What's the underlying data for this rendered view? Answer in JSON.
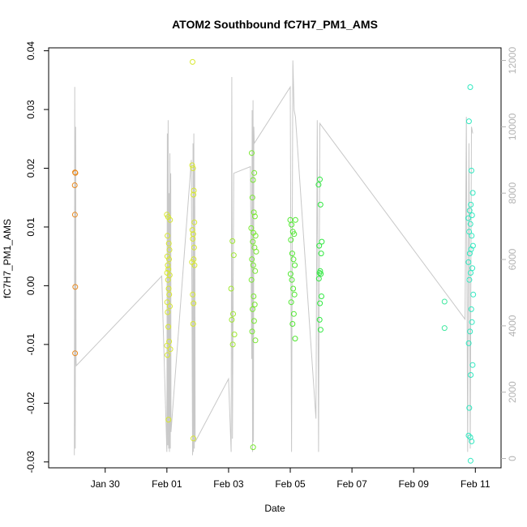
{
  "chart_data": {
    "type": "scatter",
    "title": "ATOM2 Southbound fC7H7_PM1_AMS",
    "xlabel": "Date",
    "ylabel": "fC7H7_PM1_AMS",
    "x_type": "date",
    "xlim": [
      "2017-01-28T04:00",
      "2017-02-11T20:00"
    ],
    "ylim": [
      -0.031,
      0.0405
    ],
    "y_ticks": [
      -0.03,
      -0.02,
      -0.01,
      0.0,
      0.01,
      0.02,
      0.03,
      0.04
    ],
    "y_tick_labels": [
      "-0.03",
      "-0.02",
      "-0.01",
      "0.00",
      "0.01",
      "0.02",
      "0.03",
      "0.04"
    ],
    "x_ticks": [
      "2017-01-30T00:00",
      "2017-02-01T00:00",
      "2017-02-03T00:00",
      "2017-02-05T00:00",
      "2017-02-07T00:00",
      "2017-02-09T00:00",
      "2017-02-11T00:00"
    ],
    "x_tick_labels": [
      "Jan 30",
      "Feb 01",
      "Feb 03",
      "Feb 05",
      "Feb 07",
      "Feb 09",
      "Feb 11"
    ],
    "y2lim": [
      -280,
      12380
    ],
    "y2_ticks": [
      0,
      2000,
      4000,
      6000,
      8000,
      10000,
      12000
    ],
    "y2_tick_labels": [
      "0",
      "2000",
      "4000",
      "6000",
      "8000",
      "10000",
      "12000"
    ],
    "grid": false,
    "legend": "none",
    "point_color_scale": [
      "#ff8c00",
      "#e6f000",
      "#8cf000",
      "#00f000",
      "#00f0c8"
    ],
    "line_color": "#c8c8c8",
    "groups": [
      {
        "color": "#e88a20",
        "points": [
          [
            "2017-01-29T00:30",
            0.0193
          ],
          [
            "2017-01-29T00:50",
            0.0192
          ],
          [
            "2017-01-29T00:20",
            0.0171
          ],
          [
            "2017-01-29T00:25",
            0.0121
          ],
          [
            "2017-01-29T00:40",
            -0.0002
          ],
          [
            "2017-01-29T00:35",
            -0.0115
          ]
        ]
      },
      {
        "color": "#d8e830",
        "points": [
          [
            "2017-02-01T00:00",
            0.0121
          ],
          [
            "2017-02-01T01:00",
            0.0117
          ],
          [
            "2017-02-01T02:30",
            0.0112
          ],
          [
            "2017-02-01T00:30",
            0.0085
          ],
          [
            "2017-02-01T01:30",
            0.0072
          ],
          [
            "2017-02-01T02:00",
            0.0061
          ],
          [
            "2017-02-01T00:20",
            0.005
          ],
          [
            "2017-02-01T01:40",
            0.0045
          ],
          [
            "2017-02-01T00:40",
            0.0035
          ],
          [
            "2017-02-01T01:10",
            0.0028
          ],
          [
            "2017-02-01T00:10",
            0.0022
          ],
          [
            "2017-02-01T02:10",
            0.0018
          ],
          [
            "2017-02-01T00:50",
            0.001
          ],
          [
            "2017-02-01T01:20",
            -0.0005
          ],
          [
            "2017-02-01T01:50",
            -0.0015
          ],
          [
            "2017-02-01T00:15",
            -0.0028
          ],
          [
            "2017-02-01T02:20",
            -0.0035
          ],
          [
            "2017-02-01T00:35",
            -0.0045
          ],
          [
            "2017-02-01T01:05",
            -0.007
          ],
          [
            "2017-02-01T01:45",
            -0.0095
          ],
          [
            "2017-02-01T00:05",
            -0.0102
          ],
          [
            "2017-02-01T02:40",
            -0.0108
          ],
          [
            "2017-02-01T00:25",
            -0.0118
          ],
          [
            "2017-02-01T01:15",
            -0.0228
          ]
        ]
      },
      {
        "color": "#d8e830",
        "points": [
          [
            "2017-02-01T20:00",
            0.0381
          ],
          [
            "2017-02-01T19:40",
            0.0205
          ],
          [
            "2017-02-01T20:20",
            0.02
          ],
          [
            "2017-02-01T21:00",
            0.0162
          ],
          [
            "2017-02-01T20:40",
            0.0155
          ],
          [
            "2017-02-01T21:20",
            0.0108
          ],
          [
            "2017-02-01T19:50",
            0.0095
          ],
          [
            "2017-02-01T20:30",
            0.0088
          ],
          [
            "2017-02-01T20:10",
            0.008
          ],
          [
            "2017-02-01T21:10",
            0.0065
          ],
          [
            "2017-02-01T20:50",
            0.0045
          ],
          [
            "2017-02-01T19:30",
            0.004
          ],
          [
            "2017-02-01T21:30",
            0.0035
          ],
          [
            "2017-02-01T20:05",
            -0.0015
          ],
          [
            "2017-02-01T20:45",
            -0.003
          ],
          [
            "2017-02-01T20:25",
            -0.0065
          ],
          [
            "2017-02-01T20:35",
            -0.026
          ]
        ]
      },
      {
        "color": "#a0e830",
        "points": [
          [
            "2017-02-03T03:00",
            0.0076
          ],
          [
            "2017-02-03T04:00",
            0.0052
          ],
          [
            "2017-02-03T02:00",
            -0.0005
          ],
          [
            "2017-02-03T03:30",
            -0.0048
          ],
          [
            "2017-02-03T02:30",
            -0.0058
          ],
          [
            "2017-02-03T04:30",
            -0.0083
          ],
          [
            "2017-02-03T03:15",
            -0.01
          ]
        ]
      },
      {
        "color": "#78e830",
        "points": [
          [
            "2017-02-03T18:00",
            0.0226
          ],
          [
            "2017-02-03T20:00",
            0.0192
          ],
          [
            "2017-02-03T19:00",
            0.018
          ],
          [
            "2017-02-03T18:30",
            0.015
          ],
          [
            "2017-02-03T19:40",
            0.0125
          ],
          [
            "2017-02-03T20:30",
            0.0118
          ],
          [
            "2017-02-03T17:40",
            0.0098
          ],
          [
            "2017-02-03T19:20",
            0.009
          ],
          [
            "2017-02-03T21:00",
            0.0085
          ],
          [
            "2017-02-03T18:50",
            0.0075
          ],
          [
            "2017-02-03T20:10",
            0.0065
          ],
          [
            "2017-02-03T21:30",
            0.0058
          ],
          [
            "2017-02-03T18:10",
            0.0045
          ],
          [
            "2017-02-03T19:10",
            0.0035
          ],
          [
            "2017-02-03T20:40",
            0.0025
          ],
          [
            "2017-02-03T17:50",
            0.001
          ],
          [
            "2017-02-03T19:30",
            -0.0018
          ],
          [
            "2017-02-03T20:20",
            -0.0032
          ],
          [
            "2017-02-03T18:40",
            -0.004
          ],
          [
            "2017-02-03T19:50",
            -0.006
          ],
          [
            "2017-02-03T18:20",
            -0.0078
          ],
          [
            "2017-02-03T20:50",
            -0.0093
          ],
          [
            "2017-02-03T19:05",
            -0.0275
          ]
        ]
      },
      {
        "color": "#50e830",
        "points": [
          [
            "2017-02-05T00:00",
            0.0112
          ],
          [
            "2017-02-05T04:00",
            0.0112
          ],
          [
            "2017-02-05T01:00",
            0.0104
          ],
          [
            "2017-02-05T02:00",
            0.0092
          ],
          [
            "2017-02-05T03:00",
            0.0088
          ],
          [
            "2017-02-05T00:30",
            0.0078
          ],
          [
            "2017-02-05T01:30",
            0.0055
          ],
          [
            "2017-02-05T02:30",
            0.0045
          ],
          [
            "2017-02-05T03:30",
            0.0035
          ],
          [
            "2017-02-05T00:15",
            0.002
          ],
          [
            "2017-02-05T01:15",
            0.001
          ],
          [
            "2017-02-05T02:15",
            -0.0005
          ],
          [
            "2017-02-05T03:15",
            -0.0015
          ],
          [
            "2017-02-05T00:45",
            -0.0028
          ],
          [
            "2017-02-05T02:45",
            -0.0048
          ],
          [
            "2017-02-05T01:45",
            -0.0065
          ],
          [
            "2017-02-05T03:45",
            -0.009
          ]
        ]
      },
      {
        "color": "#30e840",
        "points": [
          [
            "2017-02-05T23:00",
            0.0181
          ],
          [
            "2017-02-05T22:00",
            0.0172
          ],
          [
            "2017-02-05T23:30",
            0.0138
          ],
          [
            "2017-02-06T00:30",
            0.0075
          ],
          [
            "2017-02-05T22:30",
            0.0068
          ],
          [
            "2017-02-06T00:00",
            0.0055
          ],
          [
            "2017-02-05T23:15",
            0.0025
          ],
          [
            "2017-02-05T22:45",
            0.0022
          ],
          [
            "2017-02-05T23:45",
            0.002
          ],
          [
            "2017-02-05T22:15",
            0.0012
          ],
          [
            "2017-02-06T00:15",
            -0.0018
          ],
          [
            "2017-02-05T23:05",
            -0.003
          ],
          [
            "2017-02-05T22:50",
            -0.0058
          ],
          [
            "2017-02-05T23:35",
            -0.0075
          ]
        ]
      },
      {
        "color": "#40e8a0",
        "points": [
          [
            "2017-02-10T00:00",
            -0.0027
          ],
          [
            "2017-02-10T00:00",
            -0.0072
          ]
        ]
      },
      {
        "color": "#30e8c0",
        "points": [
          [
            "2017-02-10T20:00",
            0.0338
          ],
          [
            "2017-02-10T19:00",
            0.028
          ],
          [
            "2017-02-10T21:00",
            0.0196
          ],
          [
            "2017-02-10T22:00",
            0.0158
          ],
          [
            "2017-02-10T20:30",
            0.0138
          ],
          [
            "2017-02-10T19:30",
            0.0128
          ],
          [
            "2017-02-10T21:30",
            0.012
          ],
          [
            "2017-02-10T18:30",
            0.0115
          ],
          [
            "2017-02-10T20:10",
            0.0105
          ],
          [
            "2017-02-10T19:10",
            0.0092
          ],
          [
            "2017-02-10T21:10",
            0.0085
          ],
          [
            "2017-02-10T22:10",
            0.0068
          ],
          [
            "2017-02-10T20:40",
            0.0062
          ],
          [
            "2017-02-10T19:40",
            0.0055
          ],
          [
            "2017-02-10T18:40",
            0.004
          ],
          [
            "2017-02-10T21:40",
            0.003
          ],
          [
            "2017-02-10T20:20",
            0.0022
          ],
          [
            "2017-02-10T19:20",
            0.001
          ],
          [
            "2017-02-10T22:20",
            -0.0015
          ],
          [
            "2017-02-10T20:50",
            -0.004
          ],
          [
            "2017-02-10T21:20",
            -0.0062
          ],
          [
            "2017-02-10T19:50",
            -0.0078
          ],
          [
            "2017-02-10T18:50",
            -0.0098
          ],
          [
            "2017-02-10T21:50",
            -0.0135
          ],
          [
            "2017-02-10T20:25",
            -0.0152
          ],
          [
            "2017-02-10T19:15",
            -0.0208
          ],
          [
            "2017-02-10T18:45",
            -0.0255
          ],
          [
            "2017-02-10T20:05",
            -0.0258
          ],
          [
            "2017-02-10T21:05",
            -0.0265
          ],
          [
            "2017-02-10T20:15",
            -0.0298
          ]
        ]
      }
    ],
    "line_series_y2": [
      [
        "2017-01-29T00:00",
        100
      ],
      [
        "2017-01-29T00:20",
        11200
      ],
      [
        "2017-01-29T00:40",
        300
      ],
      [
        "2017-01-29T01:00",
        10000
      ],
      [
        "2017-01-29T01:20",
        3000
      ],
      [
        "2017-01-29T01:30",
        2800
      ],
      [
        "2017-01-31T20:00",
        5500
      ],
      [
        "2017-02-01T00:00",
        200
      ],
      [
        "2017-02-01T00:20",
        9800
      ],
      [
        "2017-02-01T00:40",
        400
      ],
      [
        "2017-02-01T01:00",
        10200
      ],
      [
        "2017-02-01T01:20",
        300
      ],
      [
        "2017-02-01T01:40",
        8000
      ],
      [
        "2017-02-01T02:00",
        200
      ],
      [
        "2017-02-01T02:20",
        9200
      ],
      [
        "2017-02-01T02:40",
        300
      ],
      [
        "2017-02-01T03:00",
        8600
      ],
      [
        "2017-02-01T03:10",
        800
      ],
      [
        "2017-02-01T19:00",
        9000
      ],
      [
        "2017-02-01T20:00",
        100
      ],
      [
        "2017-02-01T20:20",
        9500
      ],
      [
        "2017-02-01T20:40",
        200
      ],
      [
        "2017-02-01T21:00",
        9800
      ],
      [
        "2017-02-01T21:20",
        300
      ],
      [
        "2017-02-01T21:40",
        8800
      ],
      [
        "2017-02-01T22:00",
        500
      ],
      [
        "2017-02-03T00:00",
        2400
      ],
      [
        "2017-02-03T02:00",
        200
      ],
      [
        "2017-02-03T02:30",
        11500
      ],
      [
        "2017-02-03T03:00",
        600
      ],
      [
        "2017-02-03T04:00",
        8600
      ],
      [
        "2017-02-03T17:00",
        8800
      ],
      [
        "2017-02-03T18:00",
        3000
      ],
      [
        "2017-02-03T18:20",
        10500
      ],
      [
        "2017-02-03T18:40",
        200
      ],
      [
        "2017-02-03T19:00",
        10800
      ],
      [
        "2017-02-03T19:20",
        500
      ],
      [
        "2017-02-03T19:40",
        10000
      ],
      [
        "2017-02-03T20:00",
        9500
      ],
      [
        "2017-02-05T00:00",
        11200
      ],
      [
        "2017-02-05T01:00",
        200
      ],
      [
        "2017-02-05T02:00",
        12000
      ],
      [
        "2017-02-05T03:00",
        10500
      ],
      [
        "2017-02-05T04:00",
        10300
      ],
      [
        "2017-02-05T20:00",
        1200
      ],
      [
        "2017-02-05T21:00",
        10200
      ],
      [
        "2017-02-05T22:00",
        200
      ],
      [
        "2017-02-05T23:00",
        10100
      ],
      [
        "2017-02-10T16:00",
        4200
      ],
      [
        "2017-02-10T17:00",
        10300
      ],
      [
        "2017-02-10T18:00",
        200
      ],
      [
        "2017-02-10T19:00",
        9500
      ],
      [
        "2017-02-10T20:00",
        300
      ],
      [
        "2017-02-10T21:00",
        10000
      ],
      [
        "2017-02-10T22:00",
        9800
      ]
    ]
  }
}
